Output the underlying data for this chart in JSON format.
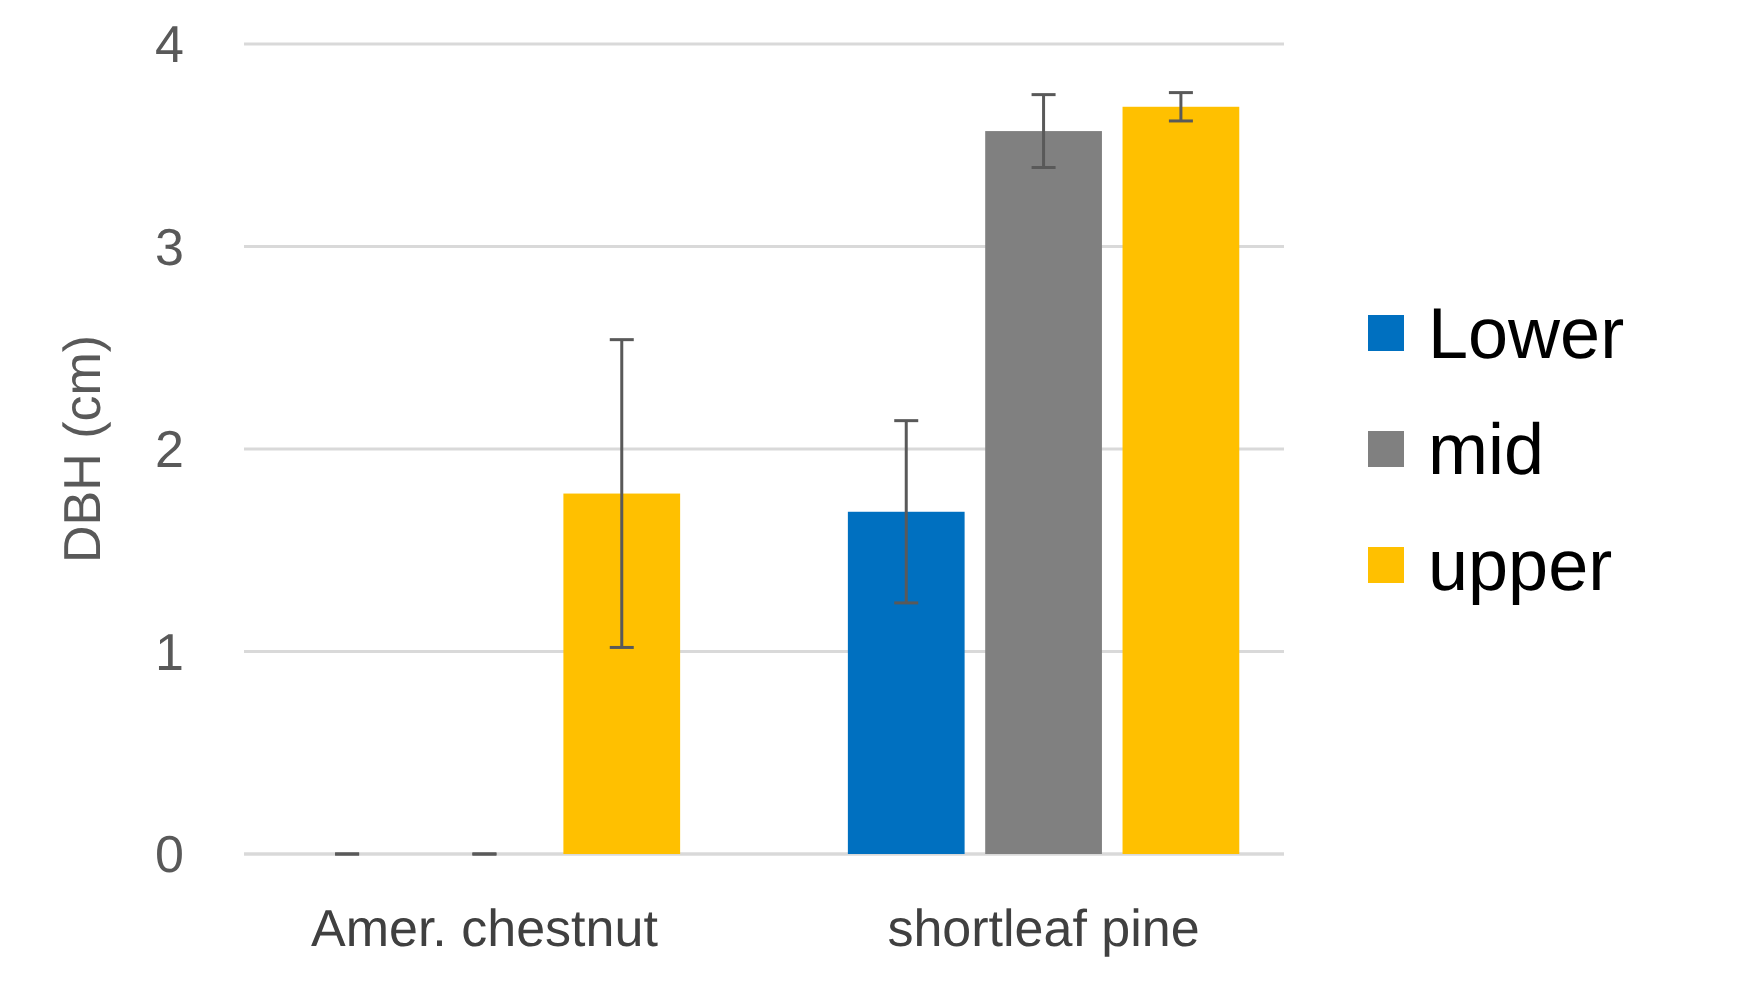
{
  "chart_data": {
    "type": "bar",
    "ylabel": "DBH (cm)",
    "categories": [
      "Amer. chestnut",
      "shortleaf pine"
    ],
    "series": [
      {
        "name": "Lower",
        "color": "#0070c0",
        "values": [
          0,
          1.69
        ],
        "errors": [
          0,
          [
            1.24,
            2.14
          ]
        ]
      },
      {
        "name": "mid",
        "color": "#808080",
        "values": [
          0,
          3.57
        ],
        "errors": [
          0,
          [
            3.39,
            3.75
          ]
        ]
      },
      {
        "name": "upper",
        "color": "#ffc000",
        "values": [
          1.78,
          3.69
        ],
        "errors": [
          [
            1.02,
            2.54
          ],
          [
            3.62,
            3.76
          ]
        ]
      }
    ],
    "ylim": [
      0,
      4
    ],
    "yticks": [
      0,
      1,
      2,
      3,
      4
    ],
    "grid": "y",
    "legend": "right"
  }
}
